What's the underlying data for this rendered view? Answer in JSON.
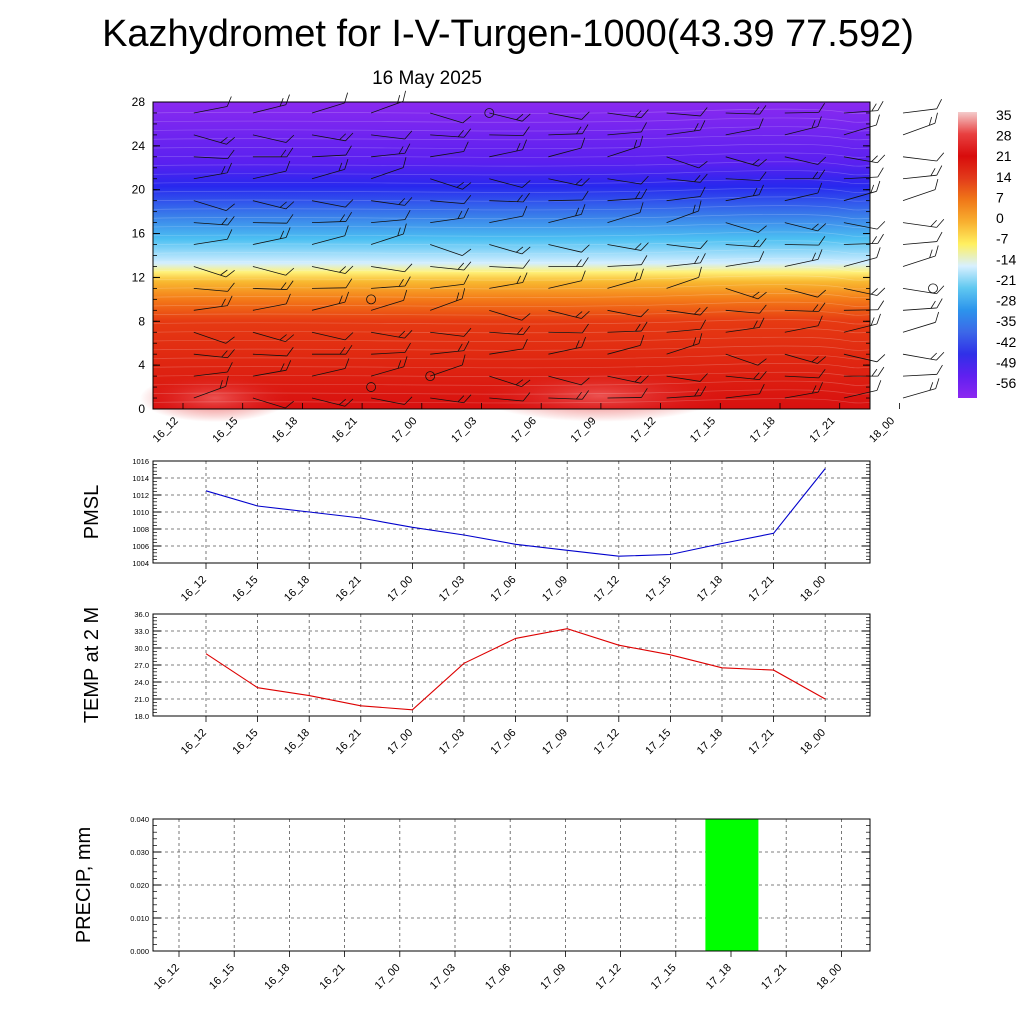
{
  "title": "Kazhydromet for I-V-Turgen-1000(43.39 77.592)",
  "subtitle": "16 May 2025",
  "time_labels": [
    "16_12",
    "16_15",
    "16_18",
    "16_21",
    "17_00",
    "17_03",
    "17_06",
    "17_09",
    "17_12",
    "17_15",
    "17_18",
    "17_21",
    "18_00"
  ],
  "chart_data": [
    {
      "type": "heatmap",
      "name": "cross-section",
      "y_ticks": [
        "0",
        "4",
        "8",
        "12",
        "16",
        "20",
        "24",
        "28"
      ],
      "ylim": [
        0,
        28
      ],
      "colorbar_labels": [
        "35",
        "28",
        "21",
        "14",
        "7",
        "0",
        "-7",
        "-14",
        "-21",
        "-28",
        "-35",
        "-42",
        "-49",
        "-56"
      ],
      "colorbar_colors": [
        "#f4cccc",
        "#e84040",
        "#d80c0c",
        "#e23a1a",
        "#f07818",
        "#f8b030",
        "#fff060",
        "#d8f0ff",
        "#60c8f0",
        "#2c94ec",
        "#3c68e8",
        "#3030e8",
        "#6020f0",
        "#8c28f0"
      ],
      "layer_colors": [
        {
          "y": 0,
          "color": "#d81010"
        },
        {
          "y": 8,
          "color": "#e63a12"
        },
        {
          "y": 10,
          "color": "#f47a18"
        },
        {
          "y": 11.6,
          "color": "#f8b830"
        },
        {
          "y": 12.5,
          "color": "#fff27a"
        },
        {
          "y": 13.3,
          "color": "#d2eeff"
        },
        {
          "y": 15.5,
          "color": "#4cc0f2"
        },
        {
          "y": 17.5,
          "color": "#3a82ea"
        },
        {
          "y": 20.3,
          "color": "#2828ee"
        },
        {
          "y": 22.5,
          "color": "#5a20f0"
        },
        {
          "y": 28,
          "color": "#8a2af0"
        }
      ],
      "x": [
        "16_12",
        "16_15",
        "16_18",
        "16_21",
        "17_00",
        "17_03",
        "17_06",
        "17_09",
        "17_12",
        "17_15",
        "17_18",
        "17_21",
        "18_00"
      ]
    },
    {
      "type": "line",
      "ylabel": "PMSL",
      "y_ticks": [
        "1004",
        "1006",
        "1008",
        "1010",
        "1012",
        "1014",
        "1016"
      ],
      "ylim": [
        1004,
        1016
      ],
      "color": "#0000cc",
      "x": [
        "16_12",
        "16_15",
        "16_18",
        "16_21",
        "17_00",
        "17_03",
        "17_06",
        "17_09",
        "17_12",
        "17_15",
        "17_18",
        "17_21",
        "18_00"
      ],
      "values": [
        1012.5,
        1010.7,
        1010.0,
        1009.3,
        1008.2,
        1007.3,
        1006.2,
        1005.5,
        1004.8,
        1005.0,
        1006.3,
        1007.5,
        1015.1
      ]
    },
    {
      "type": "line",
      "ylabel": "TEMP at 2 M",
      "y_ticks": [
        "18.0",
        "21.0",
        "24.0",
        "27.0",
        "30.0",
        "33.0",
        "36.0"
      ],
      "ylim": [
        18,
        36
      ],
      "color": "#dd0000",
      "x": [
        "16_12",
        "16_15",
        "16_18",
        "16_21",
        "17_00",
        "17_03",
        "17_06",
        "17_09",
        "17_12",
        "17_15",
        "17_18",
        "17_21",
        "18_00"
      ],
      "values": [
        29.0,
        23.0,
        21.6,
        19.8,
        19.1,
        27.3,
        31.7,
        33.4,
        30.5,
        28.8,
        26.5,
        26.1,
        21.0
      ]
    },
    {
      "type": "bar",
      "ylabel": "PRECIP, mm",
      "y_ticks": [
        "0.000",
        "0.010",
        "0.020",
        "0.030",
        "0.040"
      ],
      "ylim": [
        0,
        0.04
      ],
      "color": "#00ff00",
      "x": [
        "16_12",
        "16_15",
        "16_18",
        "16_21",
        "17_00",
        "17_03",
        "17_06",
        "17_09",
        "17_12",
        "17_15",
        "17_18",
        "17_21",
        "18_00"
      ],
      "values": [
        0,
        0,
        0,
        0,
        0,
        0,
        0,
        0,
        0,
        0,
        0.04,
        0,
        0
      ]
    }
  ]
}
